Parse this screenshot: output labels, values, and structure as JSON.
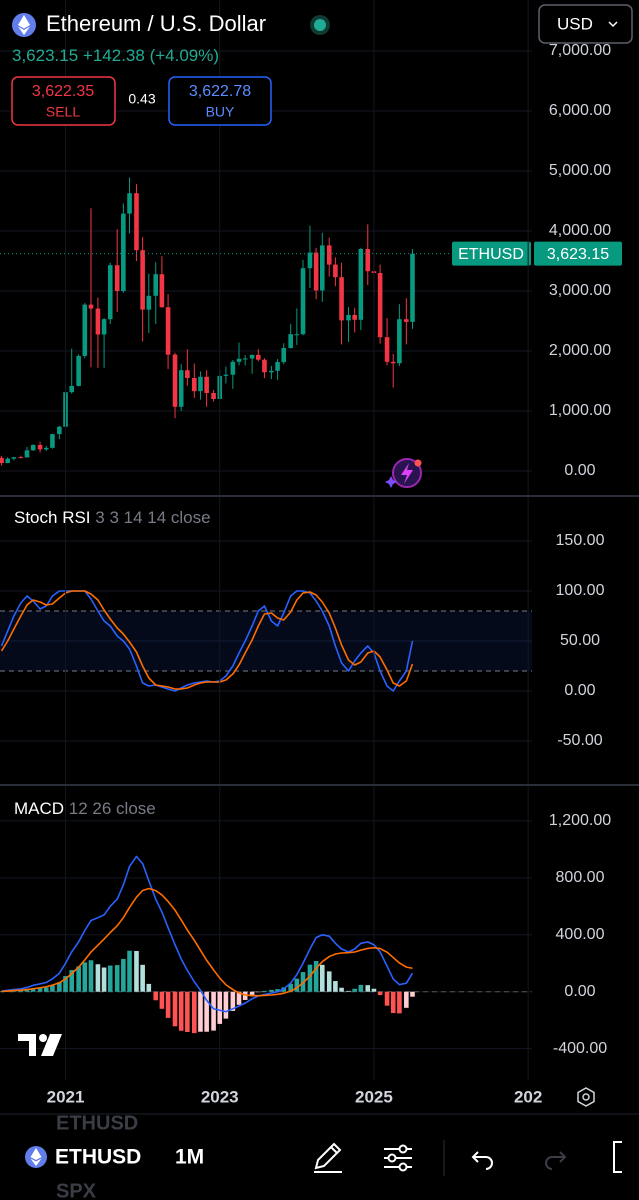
{
  "header": {
    "title": "Ethereum / U.S. Dollar",
    "price": "3,623.15",
    "change": "+142.38 (+4.09%)",
    "sell_price": "3,622.35",
    "sell": "SELL",
    "spread": "0.43",
    "buy_price": "3,622.78",
    "buy": "BUY",
    "currency": "USD"
  },
  "chart_data": [
    {
      "type": "candlestick",
      "symbol_label": "ETHUSD",
      "price_label": "3,623.15",
      "up_color": "#089981",
      "down_color": "#f23645",
      "grid": true,
      "price_line": true,
      "xlim": [
        2020.15,
        2027.05
      ],
      "ylim": [
        -400,
        7850
      ],
      "yticks": [
        {
          "value": 0,
          "label": "0.00"
        },
        {
          "value": 1000,
          "label": "1,000.00"
        },
        {
          "value": 2000,
          "label": "2,000.00"
        },
        {
          "value": 3000,
          "label": "3,000.00"
        },
        {
          "value": 4000,
          "label": "4,000.00"
        },
        {
          "value": 5000,
          "label": "5,000.00"
        },
        {
          "value": 6000,
          "label": "6,000.00"
        },
        {
          "value": 7000,
          "label": "7,000.00"
        }
      ],
      "x": [
        2020.17,
        2020.25,
        2020.33,
        2020.42,
        2020.5,
        2020.58,
        2020.67,
        2020.75,
        2020.83,
        2020.92,
        2021,
        2021.08,
        2021.17,
        2021.25,
        2021.33,
        2021.42,
        2021.5,
        2021.58,
        2021.67,
        2021.75,
        2021.83,
        2021.92,
        2022,
        2022.08,
        2022.17,
        2022.25,
        2022.33,
        2022.42,
        2022.5,
        2022.58,
        2022.67,
        2022.75,
        2022.83,
        2022.92,
        2023,
        2023.08,
        2023.17,
        2023.25,
        2023.33,
        2023.42,
        2023.5,
        2023.58,
        2023.67,
        2023.75,
        2023.83,
        2023.92,
        2024,
        2024.08,
        2024.17,
        2024.25,
        2024.33,
        2024.42,
        2024.5,
        2024.58,
        2024.67,
        2024.75,
        2024.83,
        2024.92,
        2025,
        2025.08,
        2025.17,
        2025.25,
        2025.33,
        2025.42,
        2025.5
      ],
      "open": [
        218,
        133,
        206,
        231,
        225,
        345,
        434,
        360,
        386,
        615,
        737,
        1314,
        1417,
        1918,
        2773,
        2707,
        2275,
        2530,
        3430,
        3000,
        4290,
        4630,
        3680,
        2690,
        2920,
        3280,
        2730,
        1940,
        1070,
        1680,
        1550,
        1330,
        1570,
        1300,
        1200,
        1585,
        1605,
        1820,
        1870,
        1875,
        1935,
        1855,
        1645,
        1670,
        1815,
        2050,
        2280,
        2280,
        3380,
        3640,
        3010,
        3760,
        3440,
        3230,
        2510,
        2600,
        2520,
        3700,
        3330,
        3300,
        2230,
        1820,
        1795,
        2530,
        2485
      ],
      "high": [
        253,
        227,
        227,
        255,
        400,
        445,
        488,
        420,
        620,
        755,
        1475,
        2040,
        1945,
        2800,
        4380,
        2890,
        2550,
        3470,
        4030,
        4460,
        4890,
        4780,
        3900,
        3290,
        3480,
        3580,
        2950,
        1970,
        1780,
        2030,
        1790,
        1660,
        1680,
        1350,
        1680,
        1740,
        1850,
        2140,
        1930,
        1940,
        2030,
        1880,
        1750,
        1865,
        2130,
        2450,
        2710,
        3520,
        4090,
        3720,
        3970,
        3890,
        3560,
        3470,
        2730,
        2720,
        3720,
        4110,
        3740,
        3440,
        2550,
        1950,
        2780,
        2880,
        3700
      ],
      "low": [
        90,
        130,
        178,
        218,
        225,
        335,
        308,
        335,
        372,
        530,
        715,
        1290,
        1410,
        1880,
        1730,
        1720,
        1720,
        2450,
        2650,
        2970,
        3960,
        3500,
        2160,
        2300,
        2450,
        2720,
        1700,
        880,
        1000,
        1420,
        1220,
        1190,
        1070,
        1160,
        1190,
        1460,
        1370,
        1760,
        1760,
        1620,
        1830,
        1550,
        1530,
        1520,
        1780,
        2040,
        2100,
        2260,
        3050,
        2860,
        2820,
        3240,
        3080,
        2110,
        2150,
        2310,
        2350,
        3100,
        2920,
        2120,
        1760,
        1390,
        1750,
        2110,
        2370
      ],
      "close": [
        133,
        206,
        231,
        225,
        345,
        434,
        360,
        386,
        615,
        737,
        1314,
        1417,
        1918,
        2773,
        2707,
        2275,
        2530,
        3430,
        3000,
        4290,
        4630,
        3680,
        2690,
        2920,
        3280,
        2730,
        1940,
        1070,
        1680,
        1550,
        1330,
        1570,
        1300,
        1200,
        1585,
        1605,
        1820,
        1870,
        1875,
        1935,
        1855,
        1645,
        1670,
        1815,
        2050,
        2280,
        2280,
        3380,
        3640,
        3010,
        3760,
        3440,
        3230,
        2510,
        2600,
        2520,
        3700,
        3330,
        3300,
        2230,
        1820,
        1795,
        2530,
        2485,
        3623.15
      ]
    },
    {
      "type": "line",
      "title": "Stoch RSI",
      "params": "3 3 14 14 close",
      "grid": true,
      "bands": [
        20,
        80
      ],
      "band_color": "#2962ff",
      "xlim": [
        2020.15,
        2027.05
      ],
      "ylim": [
        -92,
        194
      ],
      "yticks": [
        {
          "value": -50,
          "label": "-50.00"
        },
        {
          "value": 0,
          "label": "0.00"
        },
        {
          "value": 50,
          "label": "50.00"
        },
        {
          "value": 100,
          "label": "100.00"
        },
        {
          "value": 150,
          "label": "150.00"
        }
      ],
      "x": [
        2020.17,
        2020.25,
        2020.33,
        2020.42,
        2020.5,
        2020.58,
        2020.67,
        2020.75,
        2020.83,
        2020.92,
        2021,
        2021.08,
        2021.17,
        2021.25,
        2021.33,
        2021.42,
        2021.5,
        2021.58,
        2021.67,
        2021.75,
        2021.83,
        2021.92,
        2022,
        2022.08,
        2022.17,
        2022.25,
        2022.33,
        2022.42,
        2022.5,
        2022.58,
        2022.67,
        2022.75,
        2022.83,
        2022.92,
        2023,
        2023.08,
        2023.17,
        2023.25,
        2023.33,
        2023.42,
        2023.5,
        2023.58,
        2023.67,
        2023.75,
        2023.83,
        2023.92,
        2024,
        2024.08,
        2024.17,
        2024.25,
        2024.33,
        2024.42,
        2024.5,
        2024.58,
        2024.67,
        2024.75,
        2024.83,
        2024.92,
        2025,
        2025.08,
        2025.17,
        2025.25,
        2025.33,
        2025.42,
        2025.5
      ],
      "series": [
        {
          "color": "#2962ff",
          "values": [
            45,
            60,
            75,
            88,
            95,
            90,
            82,
            85,
            95,
            100,
            100,
            100,
            100,
            100,
            92,
            80,
            70,
            65,
            55,
            50,
            42,
            25,
            8,
            5,
            6,
            4,
            2,
            0,
            3,
            6,
            8,
            9,
            10,
            9,
            10,
            15,
            25,
            38,
            50,
            65,
            80,
            85,
            70,
            65,
            78,
            95,
            100,
            100,
            98,
            90,
            80,
            65,
            45,
            28,
            20,
            30,
            38,
            45,
            38,
            20,
            5,
            0,
            10,
            20,
            50
          ]
        },
        {
          "color": "#ff6d00",
          "values": [
            40,
            50,
            62,
            75,
            86,
            91,
            89,
            86,
            87,
            93,
            98,
            100,
            100,
            100,
            97,
            91,
            81,
            72,
            63,
            57,
            49,
            39,
            25,
            13,
            6,
            5,
            4,
            2,
            2,
            3,
            6,
            8,
            9,
            9,
            9,
            11,
            17,
            26,
            38,
            51,
            65,
            77,
            78,
            73,
            71,
            79,
            91,
            98,
            99,
            96,
            89,
            78,
            63,
            46,
            31,
            26,
            29,
            38,
            40,
            34,
            21,
            8,
            5,
            10,
            27
          ]
        }
      ]
    },
    {
      "type": "line",
      "title": "MACD",
      "params": "12 26 close",
      "grid": true,
      "zero_line": true,
      "xlim": [
        2020.15,
        2027.05
      ],
      "ylim": [
        -620,
        1445
      ],
      "xticks": [
        2021,
        2023,
        2025,
        {
          "value": 2027,
          "label": "202"
        }
      ],
      "yticks": [
        {
          "value": -400,
          "label": "-400.00"
        },
        {
          "value": 0,
          "label": "0.00"
        },
        {
          "value": 400,
          "label": "400.00"
        },
        {
          "value": 800,
          "label": "800.00"
        },
        {
          "value": 1200,
          "label": "1,200.00"
        }
      ],
      "x": [
        2020.17,
        2020.25,
        2020.33,
        2020.42,
        2020.5,
        2020.58,
        2020.67,
        2020.75,
        2020.83,
        2020.92,
        2021,
        2021.08,
        2021.17,
        2021.25,
        2021.33,
        2021.42,
        2021.5,
        2021.58,
        2021.67,
        2021.75,
        2021.83,
        2021.92,
        2022,
        2022.08,
        2022.17,
        2022.25,
        2022.33,
        2022.42,
        2022.5,
        2022.58,
        2022.67,
        2022.75,
        2022.83,
        2022.92,
        2023,
        2023.08,
        2023.17,
        2023.25,
        2023.33,
        2023.42,
        2023.5,
        2023.58,
        2023.67,
        2023.75,
        2023.83,
        2023.92,
        2024,
        2024.08,
        2024.17,
        2024.25,
        2024.33,
        2024.42,
        2024.5,
        2024.58,
        2024.67,
        2024.75,
        2024.83,
        2024.92,
        2025,
        2025.08,
        2025.17,
        2025.25,
        2025.33,
        2025.42,
        2025.5
      ],
      "histogram": [
        3,
        5,
        7,
        9,
        15,
        24,
        27,
        30,
        44,
        67,
        110,
        152,
        178,
        206,
        221,
        193,
        170,
        184,
        187,
        230,
        288,
        286,
        189,
        55,
        -60,
        -120,
        -184,
        -243,
        -274,
        -283,
        -291,
        -281,
        -281,
        -273,
        -226,
        -189,
        -135,
        -92,
        -58,
        -22,
        -2,
        6,
        13,
        18,
        31,
        56,
        92,
        138,
        190,
        216,
        189,
        143,
        75,
        28,
        6,
        21,
        48,
        46,
        21,
        -23,
        -98,
        -150,
        -152,
        -113,
        -35
      ],
      "histogram_colors": [
        "#26a69a",
        "#b2dfdb",
        "#ffcdd2",
        "#ff5252"
      ],
      "series": [
        {
          "color": "#2962ff",
          "values": [
            5,
            10,
            15,
            20,
            30,
            45,
            55,
            65,
            90,
            130,
            200,
            280,
            350,
            430,
            500,
            520,
            540,
            600,
            650,
            750,
            880,
            950,
            900,
            780,
            650,
            560,
            450,
            330,
            230,
            150,
            70,
            10,
            -60,
            -120,
            -130,
            -140,
            -120,
            -100,
            -80,
            -50,
            -30,
            -20,
            -10,
            0,
            20,
            60,
            120,
            200,
            300,
            380,
            400,
            390,
            340,
            300,
            280,
            300,
            340,
            350,
            330,
            280,
            180,
            90,
            50,
            60,
            130
          ]
        },
        {
          "color": "#ff6d00",
          "values": [
            2,
            5,
            8,
            11,
            15,
            21,
            28,
            35,
            46,
            63,
            90,
            128,
            172,
            224,
            279,
            327,
            370,
            416,
            463,
            520,
            592,
            664,
            711,
            725,
            710,
            680,
            634,
            573,
            504,
            433,
            361,
            291,
            221,
            153,
            96,
            49,
            15,
            -8,
            -22,
            -28,
            -28,
            -26,
            -23,
            -18,
            -11,
            4,
            28,
            62,
            110,
            164,
            211,
            247,
            265,
            272,
            274,
            279,
            292,
            304,
            309,
            303,
            278,
            240,
            202,
            173,
            165
          ]
        }
      ]
    }
  ],
  "toolbar": {
    "ghost_above": "ETHUSD",
    "symbol": "ETHUSD",
    "interval": "1M",
    "ghost_below": "SPX"
  }
}
